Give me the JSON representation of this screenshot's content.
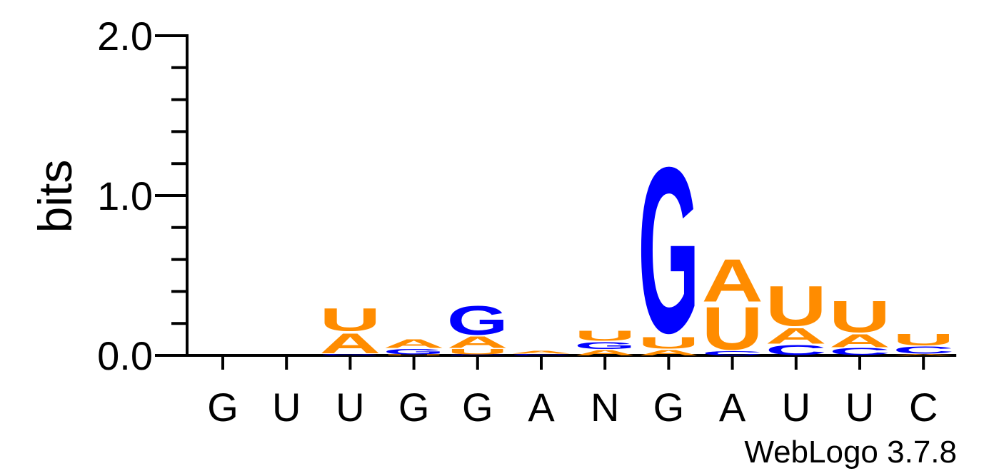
{
  "chart_data": {
    "type": "sequence-logo",
    "ylabel": "bits",
    "ylim": [
      0,
      2.0
    ],
    "y_ticks": [
      "0.0",
      "1.0",
      "2.0"
    ],
    "y_tick_values": [
      0,
      1,
      2
    ],
    "minor_tick_step": 0.2,
    "x_labels": [
      "G",
      "U",
      "U",
      "G",
      "G",
      "A",
      "N",
      "G",
      "A",
      "U",
      "U",
      "C"
    ],
    "colors": {
      "A": "#FF8C00",
      "U": "#FF8C00",
      "G": "#0000FF",
      "C": "#0000FF"
    },
    "positions": [
      {
        "consensus": "G",
        "stack": []
      },
      {
        "consensus": "U",
        "stack": []
      },
      {
        "consensus": "U",
        "stack": [
          {
            "letter": "G",
            "bits": 0.01
          },
          {
            "letter": "A",
            "bits": 0.14
          },
          {
            "letter": "U",
            "bits": 0.16
          }
        ]
      },
      {
        "consensus": "G",
        "stack": [
          {
            "letter": "U",
            "bits": 0.005
          },
          {
            "letter": "G",
            "bits": 0.04
          },
          {
            "letter": "A",
            "bits": 0.06
          }
        ]
      },
      {
        "consensus": "G",
        "stack": [
          {
            "letter": "C",
            "bits": 0.005
          },
          {
            "letter": "U",
            "bits": 0.04
          },
          {
            "letter": "A",
            "bits": 0.08
          },
          {
            "letter": "G",
            "bits": 0.2
          }
        ]
      },
      {
        "consensus": "A",
        "stack": [
          {
            "letter": "C",
            "bits": 0.01
          },
          {
            "letter": "A",
            "bits": 0.02
          }
        ]
      },
      {
        "consensus": "N",
        "stack": [
          {
            "letter": "A",
            "bits": 0.04
          },
          {
            "letter": "G",
            "bits": 0.05
          },
          {
            "letter": "U",
            "bits": 0.07
          }
        ]
      },
      {
        "consensus": "G",
        "stack": [
          {
            "letter": "A",
            "bits": 0.04
          },
          {
            "letter": "U",
            "bits": 0.08
          },
          {
            "letter": "G",
            "bits": 1.16
          }
        ]
      },
      {
        "consensus": "A",
        "stack": [
          {
            "letter": "C",
            "bits": 0.03
          },
          {
            "letter": "U",
            "bits": 0.3
          },
          {
            "letter": "A",
            "bits": 0.3
          }
        ]
      },
      {
        "consensus": "U",
        "stack": [
          {
            "letter": "C",
            "bits": 0.07
          },
          {
            "letter": "A",
            "bits": 0.11
          },
          {
            "letter": "U",
            "bits": 0.28
          }
        ]
      },
      {
        "consensus": "U",
        "stack": [
          {
            "letter": "C",
            "bits": 0.05
          },
          {
            "letter": "A",
            "bits": 0.09
          },
          {
            "letter": "U",
            "bits": 0.22
          }
        ]
      },
      {
        "consensus": "C",
        "stack": [
          {
            "letter": "A",
            "bits": 0.01
          },
          {
            "letter": "C",
            "bits": 0.05
          },
          {
            "letter": "U",
            "bits": 0.08
          }
        ]
      }
    ]
  },
  "footer": {
    "credit": "WebLogo 3.7.8"
  }
}
